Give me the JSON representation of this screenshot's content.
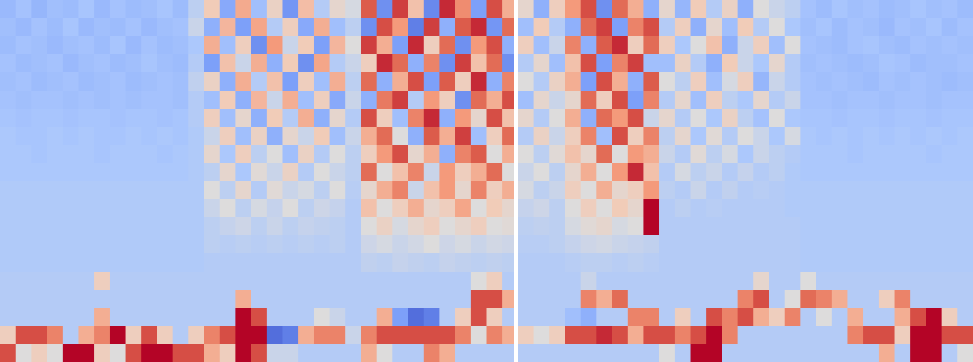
{
  "chart_data": {
    "type": "heatmap",
    "tick_labels": false,
    "x": [
      0,
      2,
      4,
      6,
      8,
      10,
      12,
      14,
      16,
      18,
      20,
      22,
      24,
      26,
      28,
      30,
      32,
      34,
      36,
      38,
      40,
      42,
      44,
      46,
      48,
      50,
      52,
      54,
      56,
      58,
      60,
      62,
      64,
      65.5,
      66,
      68,
      70,
      72,
      74,
      76,
      78,
      80,
      82,
      84,
      86,
      88,
      90,
      92,
      94,
      96,
      98,
      100,
      102,
      104,
      106,
      108,
      110,
      112,
      114,
      116,
      118,
      120,
      122,
      124
    ],
    "y": [
      0,
      1,
      2,
      3,
      4,
      5,
      6,
      7,
      8,
      9,
      10,
      11,
      12,
      13,
      14,
      15,
      16,
      17,
      18,
      19,
      20
    ],
    "xlim": [
      0,
      124
    ],
    "ylim": [
      0,
      20
    ],
    "zlim": [
      0,
      1
    ],
    "cells": [
      [
        0.33,
        0.36,
        0.32,
        0.35,
        0.34,
        0.37,
        0.33,
        0.36,
        0.34,
        0.35,
        0.37,
        0.34,
        0.42,
        0.62,
        0.28,
        0.71,
        0.35,
        0.58,
        0.22,
        0.66,
        0.4,
        0.55,
        0.48,
        0.88,
        0.2,
        0.92,
        0.65,
        0.18,
        0.95,
        0.78,
        0.25,
        0.9,
        0.7,
        null,
        0.55,
        0.3,
        0.6,
        0.75,
        0.9,
        0.2,
        0.85,
        0.7,
        0.3,
        0.55,
        0.32,
        0.62,
        0.4,
        0.58,
        0.3,
        0.5,
        0.45,
        0.42,
        0.36,
        0.34,
        0.37,
        0.35,
        0.36,
        0.34,
        0.35,
        0.37,
        0.35,
        0.36,
        0.34
      ],
      [
        0.35,
        0.33,
        0.36,
        0.34,
        0.37,
        0.33,
        0.35,
        0.34,
        0.36,
        0.33,
        0.35,
        0.36,
        0.45,
        0.3,
        0.68,
        0.25,
        0.72,
        0.4,
        0.6,
        0.28,
        0.7,
        0.35,
        0.42,
        0.2,
        0.9,
        0.75,
        0.15,
        0.92,
        0.3,
        0.88,
        0.95,
        0.22,
        0.85,
        null,
        0.35,
        0.62,
        0.4,
        0.3,
        0.85,
        0.92,
        0.25,
        0.8,
        0.9,
        0.4,
        0.6,
        0.3,
        0.55,
        0.35,
        0.62,
        0.4,
        0.5,
        0.38,
        0.35,
        0.37,
        0.34,
        0.36,
        0.35,
        0.33,
        0.36,
        0.35,
        0.37,
        0.34,
        0.36
      ],
      [
        0.34,
        0.36,
        0.35,
        0.33,
        0.35,
        0.36,
        0.34,
        0.37,
        0.33,
        0.36,
        0.34,
        0.35,
        0.38,
        0.7,
        0.35,
        0.6,
        0.2,
        0.75,
        0.45,
        0.62,
        0.25,
        0.68,
        0.5,
        0.92,
        0.7,
        0.25,
        0.95,
        0.6,
        0.85,
        0.2,
        0.75,
        0.9,
        0.3,
        null,
        0.6,
        0.35,
        0.45,
        0.8,
        0.3,
        0.88,
        0.95,
        0.6,
        0.85,
        0.6,
        0.38,
        0.5,
        0.65,
        0.3,
        0.45,
        0.6,
        0.35,
        0.5,
        0.36,
        0.35,
        0.34,
        0.36,
        0.37,
        0.35,
        0.34,
        0.36,
        0.35,
        0.36,
        0.35
      ],
      [
        0.36,
        0.34,
        0.35,
        0.36,
        0.33,
        0.35,
        0.36,
        0.34,
        0.35,
        0.37,
        0.35,
        0.34,
        0.4,
        0.25,
        0.65,
        0.45,
        0.7,
        0.3,
        0.62,
        0.2,
        0.72,
        0.4,
        0.45,
        0.6,
        0.95,
        0.85,
        0.3,
        0.8,
        0.2,
        0.92,
        0.65,
        0.85,
        0.2,
        null,
        0.4,
        0.55,
        0.35,
        0.65,
        0.9,
        0.25,
        0.8,
        0.92,
        0.35,
        0.35,
        0.58,
        0.4,
        0.3,
        0.62,
        0.45,
        0.38,
        0.55,
        0.4,
        0.35,
        0.36,
        0.35,
        0.34,
        0.35,
        0.37,
        0.36,
        0.34,
        0.35,
        0.35,
        0.36
      ],
      [
        0.35,
        0.36,
        0.34,
        0.35,
        0.36,
        0.34,
        0.35,
        0.36,
        0.34,
        0.35,
        0.36,
        0.35,
        0.43,
        0.58,
        0.3,
        0.7,
        0.4,
        0.65,
        0.25,
        0.6,
        0.35,
        0.7,
        0.42,
        0.85,
        0.3,
        0.7,
        0.9,
        0.25,
        0.88,
        0.6,
        0.95,
        0.3,
        0.8,
        null,
        0.5,
        0.4,
        0.58,
        0.7,
        0.25,
        0.9,
        0.7,
        0.3,
        0.88,
        0.5,
        0.42,
        0.6,
        0.35,
        0.48,
        0.6,
        0.32,
        0.45,
        0.4,
        0.36,
        0.35,
        0.36,
        0.35,
        0.34,
        0.36,
        0.35,
        0.36,
        0.35,
        0.34,
        0.35
      ],
      [
        0.36,
        0.35,
        0.36,
        0.36,
        0.35,
        0.36,
        0.35,
        0.36,
        0.35,
        0.36,
        0.36,
        0.35,
        0.4,
        0.35,
        0.62,
        0.3,
        0.68,
        0.45,
        0.7,
        0.35,
        0.6,
        0.28,
        0.45,
        0.3,
        0.82,
        0.92,
        0.4,
        0.75,
        0.6,
        0.2,
        0.85,
        0.7,
        0.9,
        null,
        0.35,
        0.55,
        0.45,
        0.55,
        0.85,
        0.6,
        0.9,
        0.25,
        0.8,
        0.4,
        0.55,
        0.35,
        0.6,
        0.42,
        0.38,
        0.55,
        0.4,
        0.45,
        0.36,
        0.36,
        0.35,
        0.36,
        0.36,
        0.35,
        0.36,
        0.36,
        0.35,
        0.36,
        0.36
      ],
      [
        0.37,
        0.36,
        0.37,
        0.37,
        0.36,
        0.37,
        0.37,
        0.36,
        0.37,
        0.37,
        0.36,
        0.37,
        0.4,
        0.6,
        0.35,
        0.55,
        0.3,
        0.62,
        0.4,
        0.7,
        0.3,
        0.55,
        0.4,
        0.9,
        0.6,
        0.35,
        0.8,
        0.95,
        0.3,
        0.75,
        0.55,
        0.9,
        0.65,
        null,
        0.55,
        0.4,
        0.5,
        0.7,
        0.3,
        0.85,
        0.75,
        0.9,
        0.45,
        0.55,
        0.4,
        0.5,
        0.38,
        0.58,
        0.42,
        0.36,
        0.5,
        0.38,
        0.37,
        0.37,
        0.36,
        0.37,
        0.37,
        0.36,
        0.37,
        0.37,
        0.36,
        0.37,
        0.37
      ],
      [
        0.38,
        0.37,
        0.37,
        0.38,
        0.37,
        0.38,
        0.37,
        0.37,
        0.38,
        0.37,
        0.38,
        0.37,
        0.39,
        0.45,
        0.6,
        0.35,
        0.58,
        0.3,
        0.55,
        0.45,
        0.62,
        0.35,
        0.45,
        0.7,
        0.85,
        0.5,
        0.3,
        0.88,
        0.7,
        0.92,
        0.35,
        0.6,
        0.85,
        null,
        0.4,
        0.58,
        0.45,
        0.6,
        0.8,
        0.35,
        0.9,
        0.6,
        0.8,
        0.42,
        0.55,
        0.38,
        0.52,
        0.4,
        0.5,
        0.45,
        0.38,
        0.48,
        0.38,
        0.37,
        0.38,
        0.37,
        0.38,
        0.37,
        0.38,
        0.37,
        0.38,
        0.37,
        0.38
      ],
      [
        0.38,
        0.38,
        0.37,
        0.38,
        0.38,
        0.38,
        0.37,
        0.38,
        0.38,
        0.38,
        0.37,
        0.38,
        0.39,
        0.55,
        0.38,
        0.6,
        0.42,
        0.5,
        0.35,
        0.58,
        0.4,
        0.5,
        0.42,
        0.6,
        0.75,
        0.9,
        0.55,
        0.7,
        0.3,
        0.8,
        0.88,
        0.5,
        0.7,
        null,
        0.5,
        0.42,
        0.52,
        0.65,
        0.55,
        0.85,
        0.5,
        0.75,
        0.7,
        0.45,
        0.4,
        0.52,
        0.42,
        0.48,
        0.38,
        0.45,
        0.42,
        0.4,
        0.38,
        0.38,
        0.38,
        0.37,
        0.38,
        0.38,
        0.38,
        0.38,
        0.37,
        0.38,
        0.38
      ],
      [
        0.38,
        0.38,
        0.38,
        0.38,
        0.38,
        0.38,
        0.38,
        0.38,
        0.38,
        0.38,
        0.38,
        0.38,
        0.39,
        0.42,
        0.55,
        0.38,
        0.52,
        0.45,
        0.58,
        0.4,
        0.5,
        0.45,
        0.42,
        0.85,
        0.5,
        0.65,
        0.8,
        0.45,
        0.75,
        0.6,
        0.7,
        0.85,
        0.5,
        null,
        0.45,
        0.5,
        0.42,
        0.55,
        0.7,
        0.5,
        0.75,
        0.95,
        0.65,
        0.4,
        0.48,
        0.42,
        0.45,
        0.4,
        0.44,
        0.4,
        0.42,
        0.39,
        0.38,
        0.38,
        0.38,
        0.38,
        0.38,
        0.38,
        0.38,
        0.38,
        0.38,
        0.38,
        0.38
      ],
      [
        0.39,
        0.39,
        0.39,
        0.39,
        0.39,
        0.39,
        0.39,
        0.39,
        0.39,
        0.39,
        0.39,
        0.39,
        0.39,
        0.5,
        0.42,
        0.55,
        0.4,
        0.52,
        0.45,
        0.48,
        0.42,
        0.5,
        0.41,
        0.55,
        0.7,
        0.8,
        0.45,
        0.65,
        0.75,
        0.55,
        0.8,
        0.6,
        0.7,
        null,
        0.48,
        0.42,
        0.45,
        0.6,
        0.5,
        0.7,
        0.55,
        0.6,
        0.75,
        0.42,
        0.4,
        0.45,
        0.4,
        0.43,
        0.4,
        0.41,
        0.4,
        0.39,
        0.39,
        0.39,
        0.39,
        0.39,
        0.39,
        0.39,
        0.39,
        0.39,
        0.39,
        0.39,
        0.39
      ],
      [
        0.39,
        0.39,
        0.39,
        0.39,
        0.39,
        0.39,
        0.39,
        0.39,
        0.39,
        0.39,
        0.39,
        0.39,
        0.39,
        0.45,
        0.5,
        0.42,
        0.48,
        0.44,
        0.5,
        0.42,
        0.46,
        0.44,
        0.4,
        0.65,
        0.5,
        0.6,
        0.7,
        0.55,
        0.6,
        0.72,
        0.5,
        0.62,
        0.55,
        null,
        0.44,
        0.46,
        0.42,
        0.5,
        0.6,
        0.5,
        0.62,
        0.55,
        1.0,
        0.4,
        0.42,
        0.4,
        0.41,
        0.4,
        0.4,
        0.4,
        0.4,
        0.39,
        0.39,
        0.39,
        0.39,
        0.39,
        0.39,
        0.39,
        0.39,
        0.39,
        0.39,
        0.39,
        0.39
      ],
      [
        0.39,
        0.39,
        0.39,
        0.39,
        0.39,
        0.39,
        0.39,
        0.39,
        0.39,
        0.39,
        0.39,
        0.39,
        0.39,
        0.42,
        0.44,
        0.46,
        0.42,
        0.45,
        0.42,
        0.44,
        0.43,
        0.42,
        0.4,
        0.5,
        0.58,
        0.48,
        0.55,
        0.6,
        0.5,
        0.55,
        0.6,
        0.5,
        0.52,
        null,
        0.42,
        0.43,
        0.42,
        0.48,
        0.52,
        0.55,
        0.48,
        0.5,
        1.0,
        0.4,
        0.4,
        0.4,
        0.4,
        0.4,
        0.4,
        0.4,
        0.4,
        0.4,
        0.39,
        0.39,
        0.39,
        0.39,
        0.39,
        0.39,
        0.39,
        0.39,
        0.39,
        0.39,
        0.39
      ],
      [
        0.39,
        0.39,
        0.39,
        0.39,
        0.39,
        0.39,
        0.39,
        0.39,
        0.39,
        0.39,
        0.39,
        0.39,
        0.39,
        0.42,
        0.41,
        0.42,
        0.41,
        0.42,
        0.41,
        0.42,
        0.41,
        0.42,
        0.4,
        0.46,
        0.48,
        0.45,
        0.47,
        0.5,
        0.46,
        0.48,
        0.45,
        0.47,
        0.46,
        null,
        0.41,
        0.41,
        0.42,
        0.44,
        0.46,
        0.47,
        0.45,
        0.44,
        0.43,
        0.4,
        0.4,
        0.4,
        0.4,
        0.4,
        0.4,
        0.4,
        0.4,
        0.4,
        0.39,
        0.39,
        0.39,
        0.39,
        0.39,
        0.39,
        0.39,
        0.39,
        0.39,
        0.39,
        0.39
      ],
      [
        0.39,
        0.39,
        0.39,
        0.39,
        0.39,
        0.39,
        0.39,
        0.39,
        0.39,
        0.39,
        0.39,
        0.39,
        0.39,
        0.4,
        0.4,
        0.4,
        0.4,
        0.4,
        0.4,
        0.4,
        0.4,
        0.4,
        0.4,
        0.43,
        0.42,
        0.44,
        0.43,
        0.42,
        0.44,
        0.43,
        0.42,
        0.43,
        0.42,
        null,
        0.4,
        0.4,
        0.4,
        0.41,
        0.42,
        0.42,
        0.41,
        0.42,
        0.41,
        0.4,
        0.4,
        0.4,
        0.4,
        0.4,
        0.4,
        0.4,
        0.4,
        0.4,
        0.39,
        0.39,
        0.39,
        0.39,
        0.39,
        0.39,
        0.39,
        0.39,
        0.39,
        0.39,
        0.39
      ],
      [
        0.4,
        0.4,
        0.4,
        0.4,
        0.4,
        0.4,
        0.6,
        0.4,
        0.4,
        0.4,
        0.4,
        0.4,
        0.4,
        0.4,
        0.4,
        0.4,
        0.4,
        0.4,
        0.4,
        0.4,
        0.4,
        0.4,
        0.4,
        0.4,
        0.4,
        0.4,
        0.4,
        0.4,
        0.4,
        0.4,
        0.5,
        0.6,
        0.4,
        null,
        0.4,
        0.4,
        0.4,
        0.4,
        0.45,
        0.4,
        0.4,
        0.4,
        0.4,
        0.4,
        0.4,
        0.4,
        0.4,
        0.4,
        0.4,
        0.55,
        0.4,
        0.4,
        0.5,
        0.4,
        0.4,
        0.4,
        0.4,
        0.4,
        0.4,
        0.4,
        0.4,
        0.4,
        0.4
      ],
      [
        0.4,
        0.4,
        0.4,
        0.4,
        0.4,
        0.4,
        0.4,
        0.4,
        0.4,
        0.4,
        0.4,
        0.4,
        0.4,
        0.4,
        0.4,
        0.7,
        0.4,
        0.4,
        0.4,
        0.4,
        0.4,
        0.4,
        0.4,
        0.4,
        0.4,
        0.4,
        0.4,
        0.4,
        0.4,
        0.4,
        0.9,
        0.9,
        0.7,
        null,
        0.4,
        0.4,
        0.4,
        0.4,
        0.8,
        0.7,
        0.85,
        0.4,
        0.4,
        0.4,
        0.4,
        0.4,
        0.4,
        0.4,
        0.8,
        0.9,
        0.4,
        0.5,
        0.85,
        0.8,
        0.7,
        0.4,
        0.4,
        0.6,
        0.8,
        0.4,
        0.4,
        0.4,
        0.4
      ],
      [
        0.4,
        0.4,
        0.4,
        0.4,
        0.4,
        0.4,
        0.7,
        0.4,
        0.4,
        0.4,
        0.4,
        0.4,
        0.4,
        0.4,
        0.4,
        1.0,
        0.9,
        0.4,
        0.4,
        0.4,
        0.5,
        0.45,
        0.4,
        0.4,
        0.7,
        0.25,
        0.1,
        0.15,
        0.4,
        0.6,
        0.9,
        0.6,
        0.4,
        null,
        0.4,
        0.4,
        0.4,
        0.35,
        0.3,
        0.4,
        0.4,
        0.8,
        0.8,
        0.4,
        0.6,
        0.4,
        0.9,
        0.8,
        0.9,
        0.7,
        0.6,
        0.8,
        0.4,
        0.5,
        0.4,
        0.7,
        0.4,
        0.4,
        0.7,
        0.9,
        1.0,
        0.6,
        0.4
      ],
      [
        0.6,
        0.9,
        0.9,
        0.8,
        0.4,
        0.7,
        0.8,
        1.0,
        0.6,
        0.9,
        0.6,
        0.4,
        0.6,
        0.8,
        0.9,
        1.0,
        1.0,
        0.1,
        0.15,
        0.7,
        0.8,
        0.8,
        0.45,
        0.8,
        0.9,
        0.9,
        0.9,
        0.9,
        0.9,
        0.8,
        0.5,
        0.8,
        0.7,
        null,
        0.6,
        0.5,
        0.6,
        0.9,
        0.9,
        0.95,
        0.9,
        0.7,
        0.9,
        0.9,
        0.8,
        0.9,
        1.0,
        0.8,
        0.4,
        0.4,
        0.4,
        0.4,
        0.4,
        0.4,
        0.4,
        0.8,
        0.9,
        0.9,
        0.6,
        1.0,
        1.0,
        0.9,
        0.9
      ],
      [
        0.9,
        0.5,
        0.6,
        0.5,
        1.0,
        1.0,
        0.6,
        0.5,
        0.9,
        1.0,
        1.0,
        0.9,
        0.9,
        0.7,
        0.6,
        1.0,
        0.9,
        0.45,
        0.45,
        0.4,
        0.4,
        0.4,
        0.4,
        0.7,
        0.5,
        0.4,
        0.4,
        0.8,
        0.7,
        0.4,
        0.4,
        0.4,
        0.4,
        null,
        0.4,
        0.4,
        0.4,
        0.4,
        0.4,
        0.4,
        0.4,
        0.4,
        0.4,
        0.5,
        0.4,
        1.0,
        1.0,
        0.4,
        0.4,
        0.4,
        0.4,
        0.4,
        0.4,
        0.4,
        0.4,
        0.4,
        0.4,
        0.7,
        0.4,
        1.0,
        1.0,
        0.4,
        0.5
      ]
    ]
  }
}
